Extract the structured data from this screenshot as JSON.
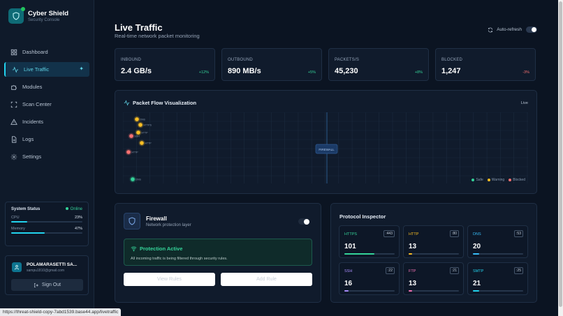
{
  "brand": {
    "title": "Cyber Shield",
    "subtitle": "Security Console",
    "icon": "shield-icon",
    "status_color": "#22c55e"
  },
  "nav": [
    {
      "label": "Dashboard",
      "icon": "grid-icon",
      "active": false
    },
    {
      "label": "Live Traffic",
      "icon": "activity-icon",
      "active": true
    },
    {
      "label": "Modules",
      "icon": "puzzle-icon",
      "active": false
    },
    {
      "label": "Scan Center",
      "icon": "scan-icon",
      "active": false
    },
    {
      "label": "Incidents",
      "icon": "alert-icon",
      "active": false
    },
    {
      "label": "Logs",
      "icon": "file-icon",
      "active": false
    },
    {
      "label": "Settings",
      "icon": "gear-icon",
      "active": false
    }
  ],
  "system_status": {
    "title": "System Status",
    "status": "Online",
    "cpu": {
      "label": "CPU",
      "value": "23%",
      "fraction": 0.23
    },
    "memory": {
      "label": "Memory",
      "value": "47%",
      "fraction": 0.47
    }
  },
  "user": {
    "name": "POLAMARASETTI SA...",
    "email": "sampu1810@gmail.com",
    "signout_label": "Sign Out"
  },
  "status_url": "https://threat-shield-copy-7abd1539.base44.app/livetraffic",
  "header": {
    "title": "Live Traffic",
    "subtitle": "Real-time network packet monitoring",
    "autorefresh_label": "Auto-refresh",
    "autorefresh_on": true
  },
  "stats": [
    {
      "label": "INBOUND",
      "value": "2.4 GB/s",
      "delta": "+12%",
      "negative": false
    },
    {
      "label": "OUTBOUND",
      "value": "890 MB/s",
      "delta": "+5%",
      "negative": false
    },
    {
      "label": "PACKETS/S",
      "value": "45,230",
      "delta": "+8%",
      "negative": false
    },
    {
      "label": "BLOCKED",
      "value": "1,247",
      "delta": "-3%",
      "negative": true
    }
  ],
  "flow": {
    "title": "Packet Flow Visualization",
    "live_label": "Live",
    "center_label": "FIREWALL",
    "packets": [
      {
        "label": "DNS",
        "status": "warning"
      },
      {
        "label": "HTTPS",
        "status": "warning"
      },
      {
        "label": "HTTP",
        "status": "warning"
      },
      {
        "label": "SSH",
        "status": "blocked"
      },
      {
        "label": "HTTP",
        "status": "warning"
      },
      {
        "label": "HTTP",
        "status": "blocked"
      },
      {
        "label": "DNS",
        "status": "safe"
      }
    ],
    "legend": [
      {
        "label": "Safe",
        "color": "#34d399"
      },
      {
        "label": "Warning",
        "color": "#fbbf24"
      },
      {
        "label": "Blocked",
        "color": "#f87171"
      }
    ]
  },
  "firewall": {
    "title": "Firewall",
    "subtitle": "Network protection layer",
    "enabled": true,
    "protection_title": "Protection Active",
    "protection_text": "All incoming traffic is being filtered through security rules.",
    "view_rules_label": "View Rules",
    "add_rule_label": "Add Rule"
  },
  "protocol_inspector": {
    "title": "Protocol Inspector",
    "protocols": [
      {
        "name": "HTTPS",
        "port": ":443",
        "count": "101",
        "fraction": 0.6,
        "color": "#34d399"
      },
      {
        "name": "HTTP",
        "port": ":80",
        "count": "13",
        "fraction": 0.07,
        "color": "#fbbf24"
      },
      {
        "name": "DNS",
        "port": ":53",
        "count": "20",
        "fraction": 0.12,
        "color": "#38bdf8"
      },
      {
        "name": "SSH",
        "port": ":22",
        "count": "16",
        "fraction": 0.09,
        "color": "#a78bfa"
      },
      {
        "name": "FTP",
        "port": ":21",
        "count": "13",
        "fraction": 0.07,
        "color": "#f472b6"
      },
      {
        "name": "SMTP",
        "port": ":25",
        "count": "21",
        "fraction": 0.12,
        "color": "#22d3ee"
      }
    ]
  }
}
